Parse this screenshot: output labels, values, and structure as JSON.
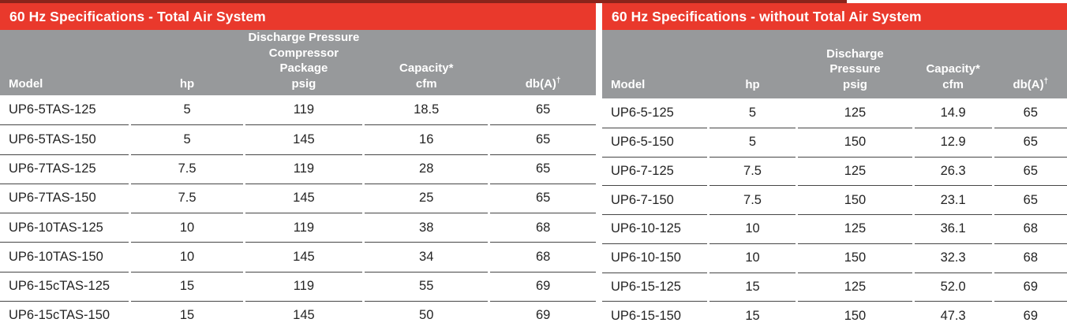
{
  "colors": {
    "brand_red": "#e9392c",
    "dark_red_strip": "#8a241b",
    "header_gray": "#97999b",
    "divider": "#454545",
    "header_text": "#ffffff",
    "body_text": "#242424"
  },
  "left_table": {
    "title": "60 Hz Specifications - Total Air System",
    "headers": {
      "model": "Model",
      "hp": "hp",
      "pressure_lines": [
        "Discharge Pressure",
        "Compressor Package",
        "psig"
      ],
      "capacity_lines": [
        "Capacity*",
        "cfm"
      ],
      "db": "db(A)",
      "db_superscript": "†"
    },
    "rows": [
      {
        "model": "UP6-5TAS-125",
        "hp": "5",
        "psig": "119",
        "cfm": "18.5",
        "db": "65"
      },
      {
        "model": "UP6-5TAS-150",
        "hp": "5",
        "psig": "145",
        "cfm": "16",
        "db": "65"
      },
      {
        "model": "UP6-7TAS-125",
        "hp": "7.5",
        "psig": "119",
        "cfm": "28",
        "db": "65"
      },
      {
        "model": "UP6-7TAS-150",
        "hp": "7.5",
        "psig": "145",
        "cfm": "25",
        "db": "65"
      },
      {
        "model": "UP6-10TAS-125",
        "hp": "10",
        "psig": "119",
        "cfm": "38",
        "db": "68"
      },
      {
        "model": "UP6-10TAS-150",
        "hp": "10",
        "psig": "145",
        "cfm": "34",
        "db": "68"
      },
      {
        "model": "UP6-15cTAS-125",
        "hp": "15",
        "psig": "119",
        "cfm": "55",
        "db": "69"
      },
      {
        "model": "UP6-15cTAS-150",
        "hp": "15",
        "psig": "145",
        "cfm": "50",
        "db": "69"
      }
    ]
  },
  "right_table": {
    "title": "60 Hz Specifications - without Total Air System",
    "headers": {
      "model": "Model",
      "hp": "hp",
      "pressure_lines": [
        "Discharge",
        "Pressure",
        "psig"
      ],
      "capacity_lines": [
        "Capacity*",
        "cfm"
      ],
      "db": "db(A)",
      "db_superscript": "†"
    },
    "rows": [
      {
        "model": "UP6-5-125",
        "hp": "5",
        "psig": "125",
        "cfm": "14.9",
        "db": "65"
      },
      {
        "model": "UP6-5-150",
        "hp": "5",
        "psig": "150",
        "cfm": "12.9",
        "db": "65"
      },
      {
        "model": "UP6-7-125",
        "hp": "7.5",
        "psig": "125",
        "cfm": "26.3",
        "db": "65"
      },
      {
        "model": "UP6-7-150",
        "hp": "7.5",
        "psig": "150",
        "cfm": "23.1",
        "db": "65"
      },
      {
        "model": "UP6-10-125",
        "hp": "10",
        "psig": "125",
        "cfm": "36.1",
        "db": "68"
      },
      {
        "model": "UP6-10-150",
        "hp": "10",
        "psig": "150",
        "cfm": "32.3",
        "db": "68"
      },
      {
        "model": "UP6-15-125",
        "hp": "15",
        "psig": "125",
        "cfm": "52.0",
        "db": "69"
      },
      {
        "model": "UP6-15-150",
        "hp": "15",
        "psig": "150",
        "cfm": "47.3",
        "db": "69"
      }
    ]
  }
}
